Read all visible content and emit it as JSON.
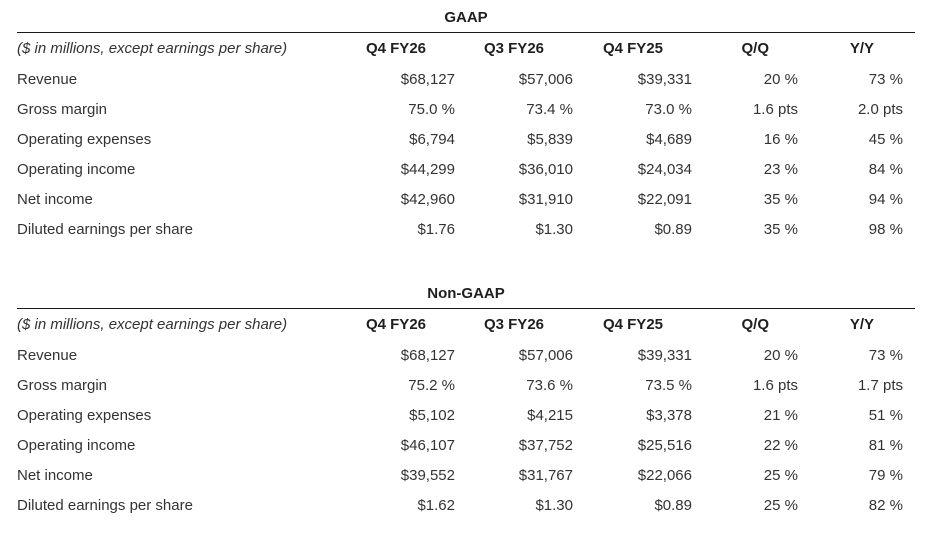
{
  "page": {
    "background_color": "#ffffff",
    "text_color": "#333333",
    "rule_color": "#1a1a1a"
  },
  "tables": [
    {
      "title": "GAAP",
      "unit_note": "($ in millions, except earnings per share)",
      "columns": [
        "Q4 FY26",
        "Q3 FY26",
        "Q4 FY25",
        "Q/Q",
        "Y/Y"
      ],
      "rows": [
        {
          "label": "Revenue",
          "values": [
            "$68,127",
            "$57,006",
            "$39,331",
            "20 %",
            "73 %"
          ]
        },
        {
          "label": "Gross margin",
          "values": [
            "75.0 %",
            "73.4 %",
            "73.0 %",
            "1.6 pts",
            "2.0 pts"
          ]
        },
        {
          "label": "Operating expenses",
          "values": [
            "$6,794",
            "$5,839",
            "$4,689",
            "16 %",
            "45 %"
          ]
        },
        {
          "label": "Operating income",
          "values": [
            "$44,299",
            "$36,010",
            "$24,034",
            "23 %",
            "84 %"
          ]
        },
        {
          "label": "Net income",
          "values": [
            "$42,960",
            "$31,910",
            "$22,091",
            "35 %",
            "94 %"
          ]
        },
        {
          "label": "Diluted earnings per share",
          "values": [
            "$1.76",
            "$1.30",
            "$0.89",
            "35 %",
            "98 %"
          ]
        }
      ]
    },
    {
      "title": "Non-GAAP",
      "unit_note": "($ in millions, except earnings per share)",
      "columns": [
        "Q4 FY26",
        "Q3 FY26",
        "Q4 FY25",
        "Q/Q",
        "Y/Y"
      ],
      "rows": [
        {
          "label": "Revenue",
          "values": [
            "$68,127",
            "$57,006",
            "$39,331",
            "20 %",
            "73 %"
          ]
        },
        {
          "label": "Gross margin",
          "values": [
            "75.2 %",
            "73.6 %",
            "73.5 %",
            "1.6 pts",
            "1.7 pts"
          ]
        },
        {
          "label": "Operating expenses",
          "values": [
            "$5,102",
            "$4,215",
            "$3,378",
            "21 %",
            "51 %"
          ]
        },
        {
          "label": "Operating income",
          "values": [
            "$46,107",
            "$37,752",
            "$25,516",
            "22 %",
            "81 %"
          ]
        },
        {
          "label": "Net income",
          "values": [
            "$39,552",
            "$31,767",
            "$22,066",
            "25 %",
            "79 %"
          ]
        },
        {
          "label": "Diluted earnings per share",
          "values": [
            "$1.62",
            "$1.30",
            "$0.89",
            "25 %",
            "82 %"
          ]
        }
      ]
    }
  ]
}
